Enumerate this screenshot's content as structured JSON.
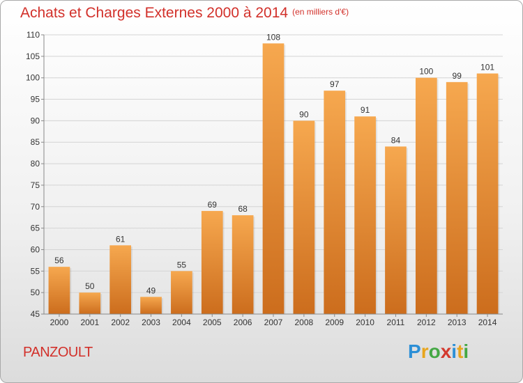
{
  "header": {
    "title": "Achats et Charges Externes 2000 à 2014",
    "subtitle": "(en milliers d'€)"
  },
  "footer": {
    "place": "PANZOULT",
    "logo": "Proxiti"
  },
  "colors": {
    "title": "#d2302a",
    "bar_top": "#f6a84f",
    "bar_bottom": "#cc6d1d",
    "grid": "#cfcfcf"
  },
  "chart_data": {
    "type": "bar",
    "title": "Achats et Charges Externes 2000 à 2014",
    "subtitle": "(en milliers d'€)",
    "xlabel": "",
    "ylabel": "",
    "categories": [
      "2000",
      "2001",
      "2002",
      "2003",
      "2004",
      "2005",
      "2006",
      "2007",
      "2008",
      "2009",
      "2010",
      "2011",
      "2012",
      "2013",
      "2014"
    ],
    "values": [
      56,
      50,
      61,
      49,
      55,
      69,
      68,
      108,
      90,
      97,
      91,
      84,
      100,
      99,
      101
    ],
    "ylim": [
      45,
      110
    ],
    "yticks": [
      45,
      50,
      55,
      60,
      65,
      70,
      75,
      80,
      85,
      90,
      95,
      100,
      105,
      110
    ],
    "grid": true,
    "data_labels": true
  }
}
